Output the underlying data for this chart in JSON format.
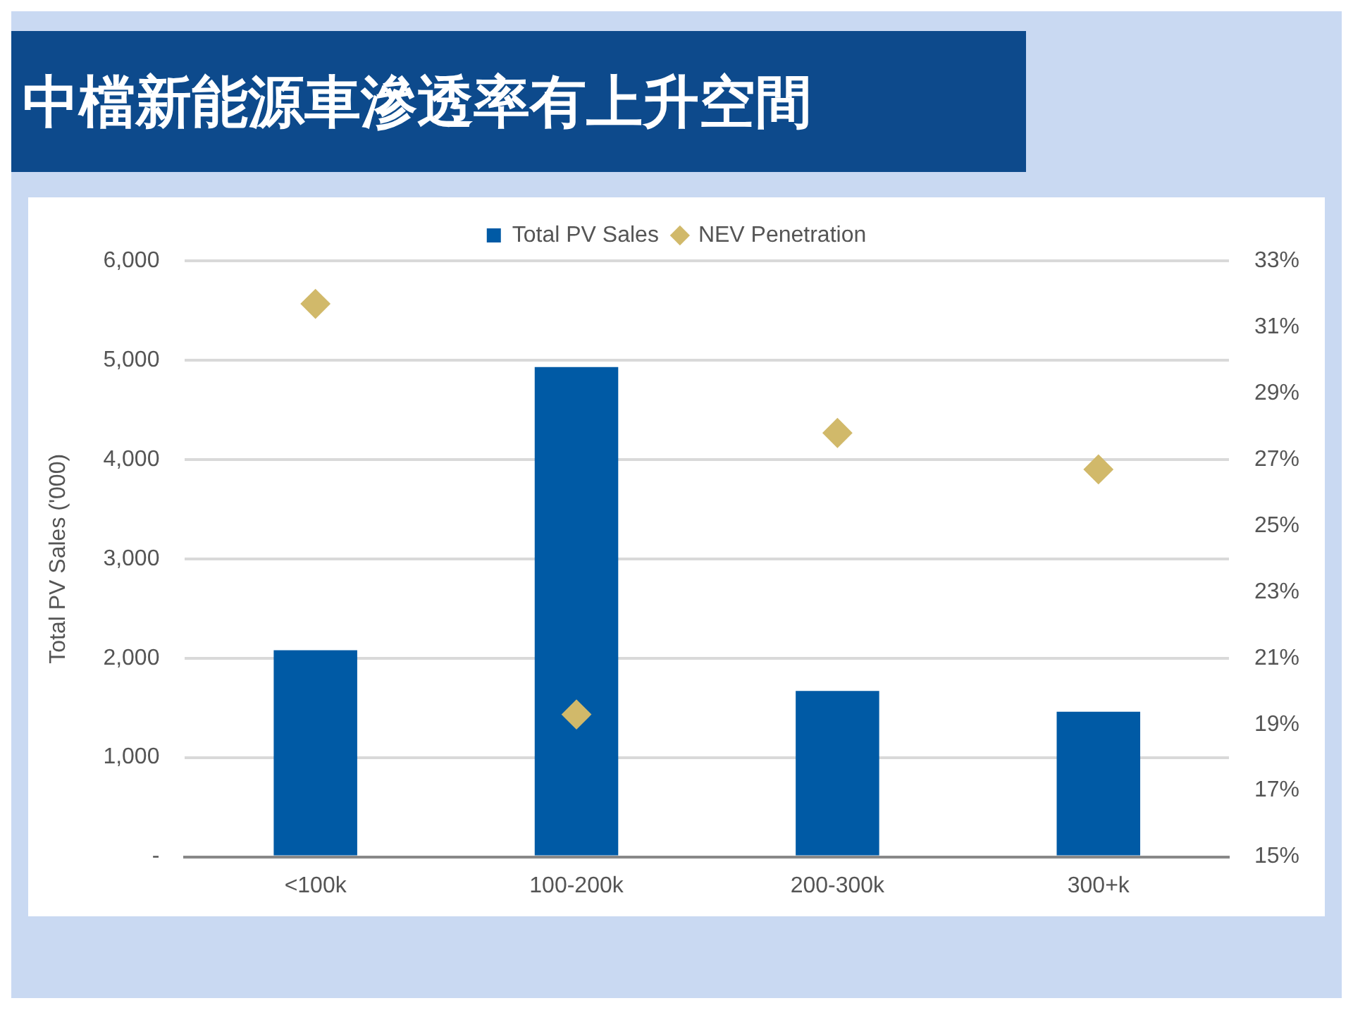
{
  "chart_data": {
    "type": "bar",
    "title": "中檔新能源車滲透率有上升空間",
    "categories": [
      "<100k",
      "100-200k",
      "200-300k",
      "300+k"
    ],
    "ylabel": "Total PV Sales ('000)",
    "ylim": [
      0,
      6000
    ],
    "yticks": [
      {
        "value": 0,
        "label": "-"
      },
      {
        "value": 1000,
        "label": "1,000"
      },
      {
        "value": 2000,
        "label": "2,000"
      },
      {
        "value": 3000,
        "label": "3,000"
      },
      {
        "value": 4000,
        "label": "4,000"
      },
      {
        "value": 5000,
        "label": "5,000"
      },
      {
        "value": 6000,
        "label": "6,000"
      }
    ],
    "y2lim": [
      15,
      33
    ],
    "y2ticks": [
      {
        "value": 15,
        "label": "15%"
      },
      {
        "value": 17,
        "label": "17%"
      },
      {
        "value": 19,
        "label": "19%"
      },
      {
        "value": 21,
        "label": "21%"
      },
      {
        "value": 23,
        "label": "23%"
      },
      {
        "value": 25,
        "label": "25%"
      },
      {
        "value": 27,
        "label": "27%"
      },
      {
        "value": 29,
        "label": "29%"
      },
      {
        "value": 31,
        "label": "31%"
      },
      {
        "value": 33,
        "label": "33%"
      }
    ],
    "grid": "y",
    "legend": "top",
    "series": [
      {
        "name": "Total PV Sales",
        "color": "#005aa5",
        "values": [
          2080,
          4930,
          1670,
          1460
        ]
      },
      {
        "name": "NEV Penetration",
        "type": "scatter",
        "axis": "y2",
        "marker": "diamond",
        "color": "#d1b96a",
        "values": [
          31.7,
          19.3,
          27.8,
          26.7
        ]
      }
    ]
  }
}
